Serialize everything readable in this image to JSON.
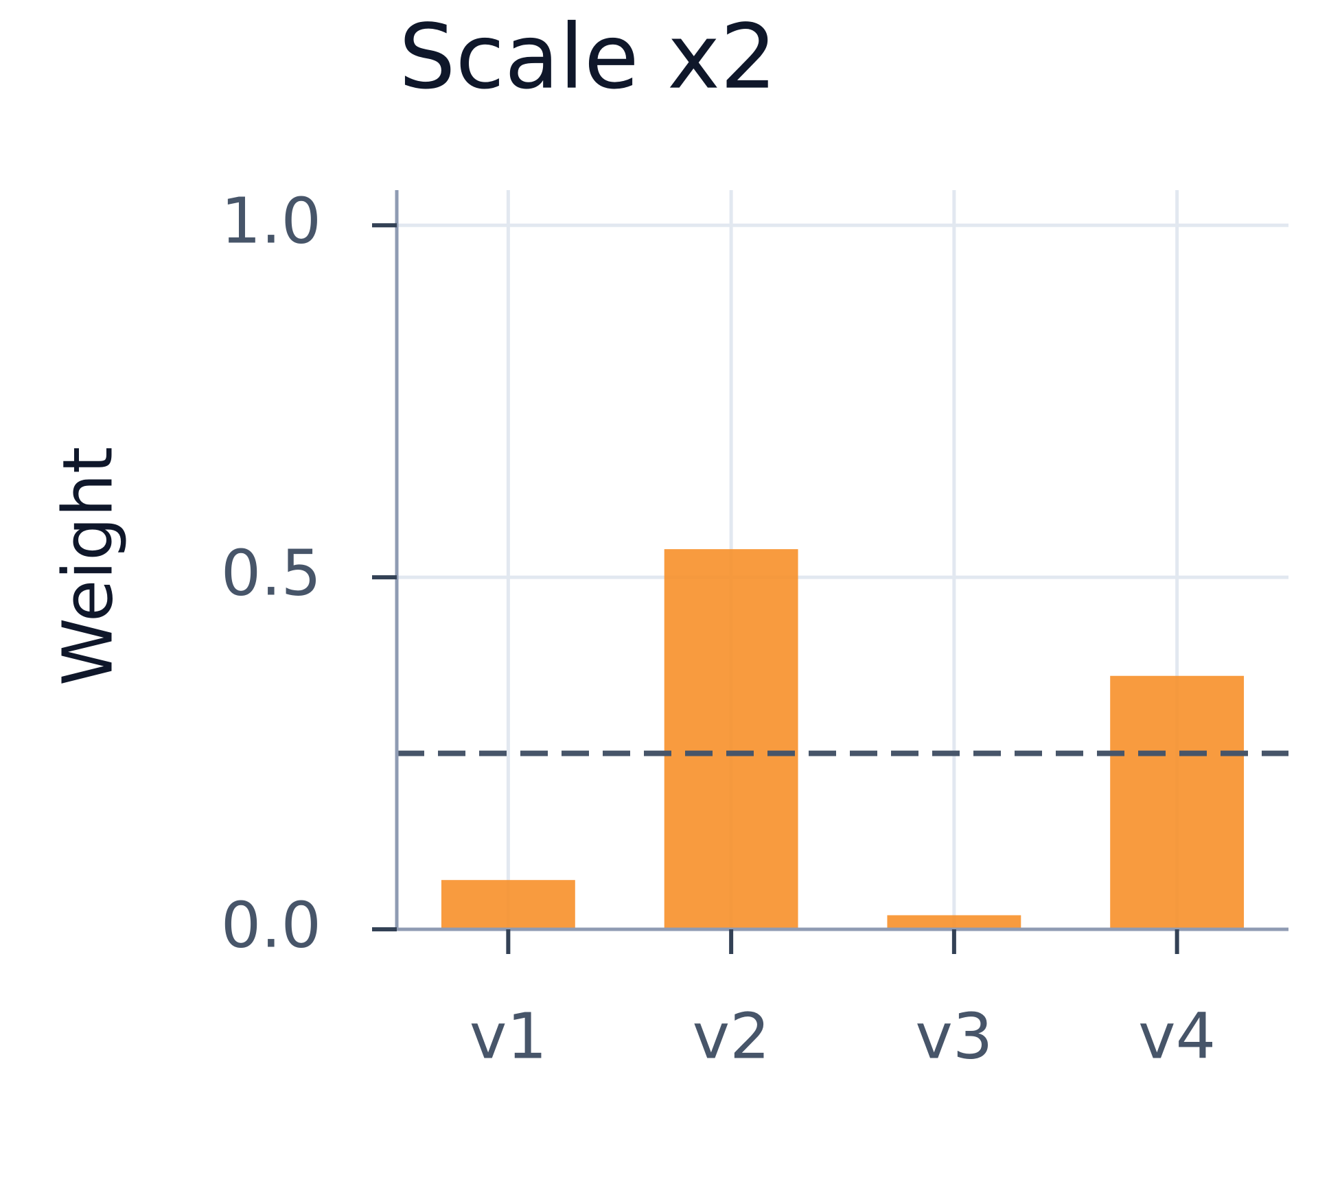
{
  "chart_data": {
    "type": "bar",
    "title": "Scale x2",
    "ylabel": "Weight",
    "categories": [
      "v1",
      "v2",
      "v3",
      "v4"
    ],
    "values": [
      0.07,
      0.54,
      0.02,
      0.36
    ],
    "color": "#f7902a",
    "ylim": [
      0,
      1.05
    ],
    "yticks": [
      {
        "value": 0,
        "label": "0.0"
      },
      0.5,
      {
        "value": 1,
        "label": "1.0"
      }
    ],
    "grid": true,
    "hline": 0.25,
    "hline_color": "#475569"
  }
}
